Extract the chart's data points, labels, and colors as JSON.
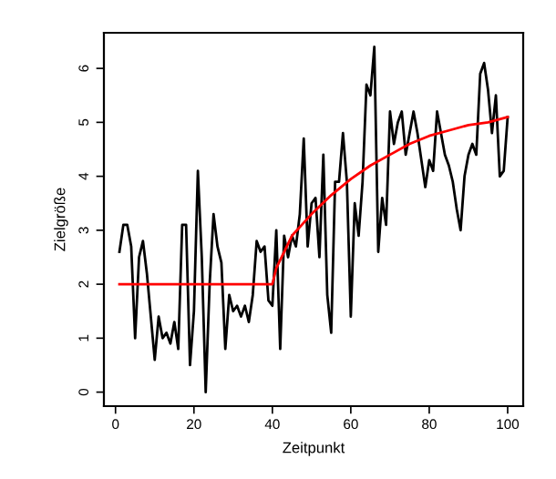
{
  "chart_data": {
    "type": "line",
    "xlabel": "Zeitpunkt",
    "ylabel": "Zielgröße",
    "xlim": [
      -2.96,
      103.96
    ],
    "ylim": [
      -0.26,
      6.66
    ],
    "xticks": [
      0,
      20,
      40,
      60,
      80,
      100
    ],
    "yticks": [
      0,
      1,
      2,
      3,
      4,
      5,
      6
    ],
    "grid": false,
    "legend": false,
    "series": [
      {
        "color": "#000000",
        "x": [
          1,
          2,
          3,
          4,
          5,
          6,
          7,
          8,
          9,
          10,
          11,
          12,
          13,
          14,
          15,
          16,
          17,
          18,
          19,
          20,
          21,
          22,
          23,
          24,
          25,
          26,
          27,
          28,
          29,
          30,
          31,
          32,
          33,
          34,
          35,
          36,
          37,
          38,
          39,
          40,
          41,
          42,
          43,
          44,
          45,
          46,
          47,
          48,
          49,
          50,
          51,
          52,
          53,
          54,
          55,
          56,
          57,
          58,
          59,
          60,
          61,
          62,
          63,
          64,
          65,
          66,
          67,
          68,
          69,
          70,
          71,
          72,
          73,
          74,
          75,
          76,
          77,
          78,
          79,
          80,
          81,
          82,
          83,
          84,
          85,
          86,
          87,
          88,
          89,
          90,
          91,
          92,
          93,
          94,
          95,
          96,
          97,
          98,
          99,
          100
        ],
        "values": [
          2.6,
          3.1,
          3.1,
          2.7,
          1.0,
          2.5,
          2.8,
          2.2,
          1.4,
          0.6,
          1.4,
          1.0,
          1.1,
          0.9,
          1.3,
          0.8,
          3.1,
          3.1,
          0.5,
          1.5,
          4.1,
          2.5,
          0.0,
          2.0,
          3.3,
          2.7,
          2.4,
          0.8,
          1.8,
          1.5,
          1.6,
          1.4,
          1.6,
          1.3,
          1.8,
          2.8,
          2.6,
          2.7,
          1.7,
          1.6,
          3.0,
          0.8,
          2.9,
          2.5,
          2.9,
          2.7,
          3.3,
          4.7,
          2.7,
          3.5,
          3.6,
          2.5,
          4.4,
          1.8,
          1.1,
          3.9,
          3.9,
          4.8,
          3.9,
          1.4,
          3.5,
          2.9,
          3.9,
          5.7,
          5.5,
          6.4,
          2.6,
          3.6,
          3.1,
          5.2,
          4.6,
          5.0,
          5.2,
          4.4,
          4.8,
          5.2,
          4.8,
          4.3,
          3.8,
          4.3,
          4.1,
          5.2,
          4.8,
          4.4,
          4.2,
          3.9,
          3.4,
          3.0,
          4.0,
          4.4,
          4.6,
          4.4,
          5.9,
          6.1,
          5.6,
          4.8,
          5.5,
          4.0,
          4.1,
          5.1
        ]
      },
      {
        "color": "#ff0000",
        "x": [
          1,
          40,
          41,
          45,
          50,
          55,
          60,
          65,
          70,
          75,
          80,
          85,
          90,
          95,
          100
        ],
        "values": [
          2.0,
          2.0,
          2.3,
          2.9,
          3.3,
          3.65,
          3.95,
          4.2,
          4.4,
          4.6,
          4.75,
          4.85,
          4.95,
          5.0,
          5.1
        ]
      }
    ]
  }
}
